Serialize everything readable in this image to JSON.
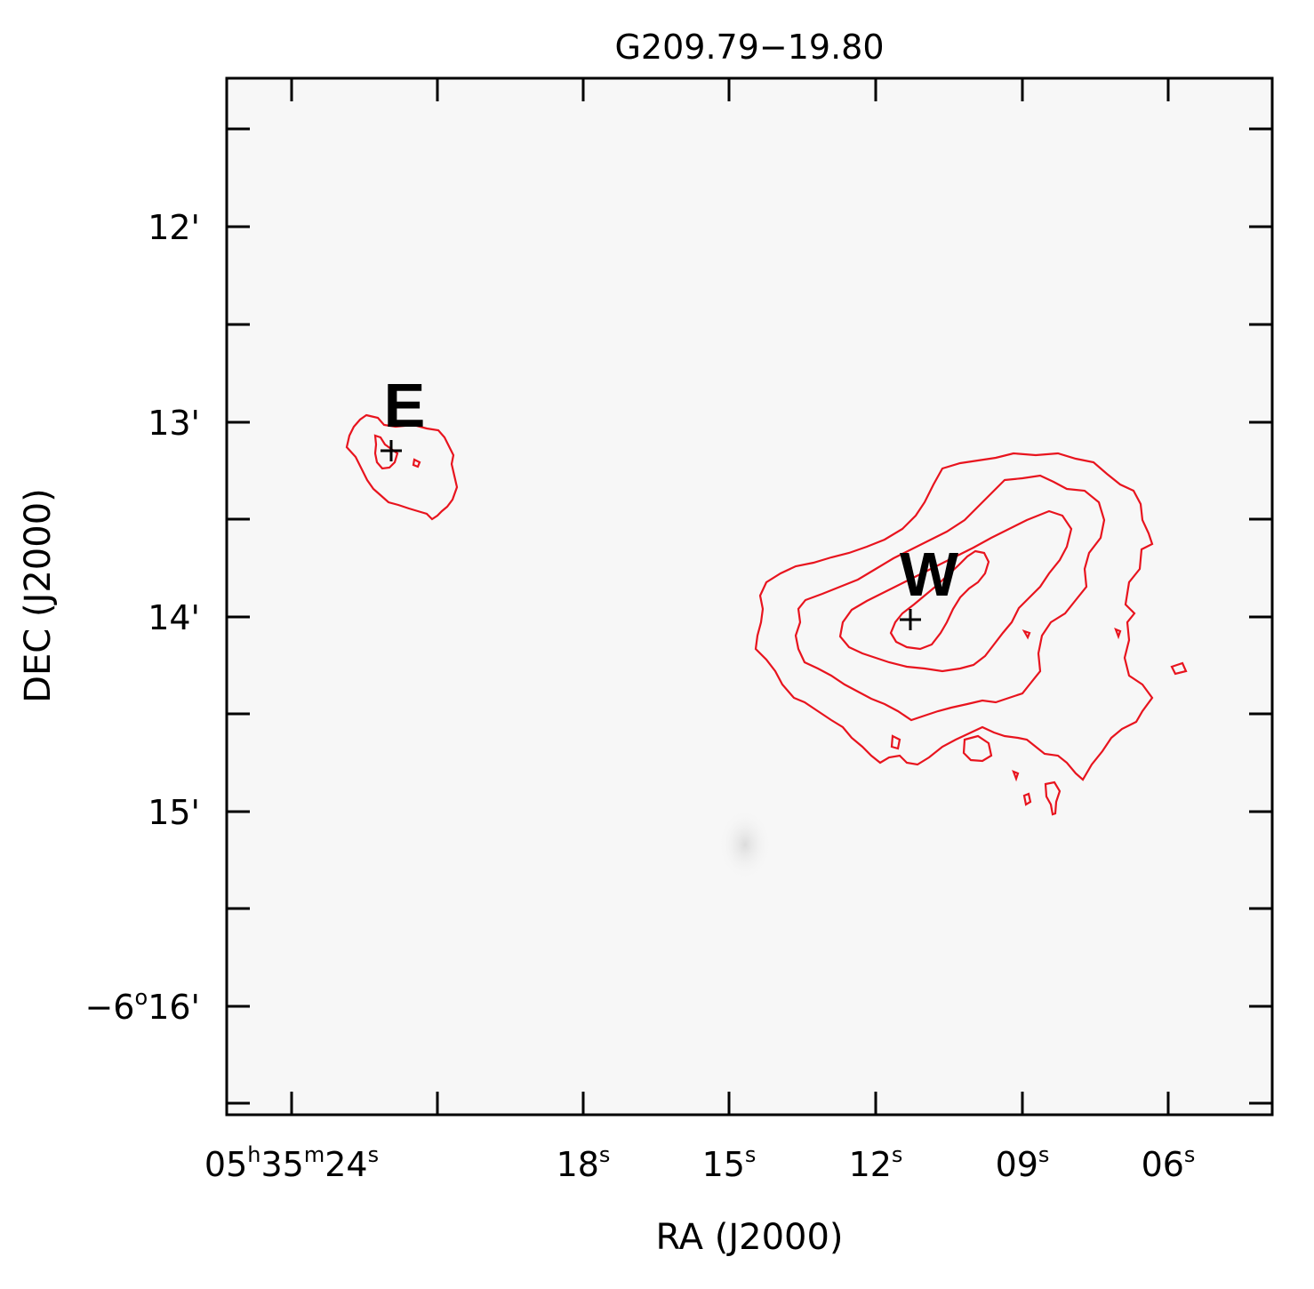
{
  "title": "G209.79−19.80",
  "xlabel": "RA (J2000)",
  "ylabel": "DEC (J2000)",
  "x_ticks": [
    {
      "h": "05",
      "m": "35",
      "s": "24"
    },
    {
      "s": "18"
    },
    {
      "s": "15"
    },
    {
      "s": "12"
    },
    {
      "s": "09"
    },
    {
      "s": "06"
    }
  ],
  "y_ticks": [
    "12'",
    "13'",
    "14'",
    "15'"
  ],
  "y_tick_last": {
    "deg": "−6",
    "min": "16'"
  },
  "sources": [
    {
      "name": "E"
    },
    {
      "name": "W"
    }
  ],
  "colors": {
    "contour": "#e8141e",
    "frame": "#000000",
    "background": "#f7f7f7"
  }
}
